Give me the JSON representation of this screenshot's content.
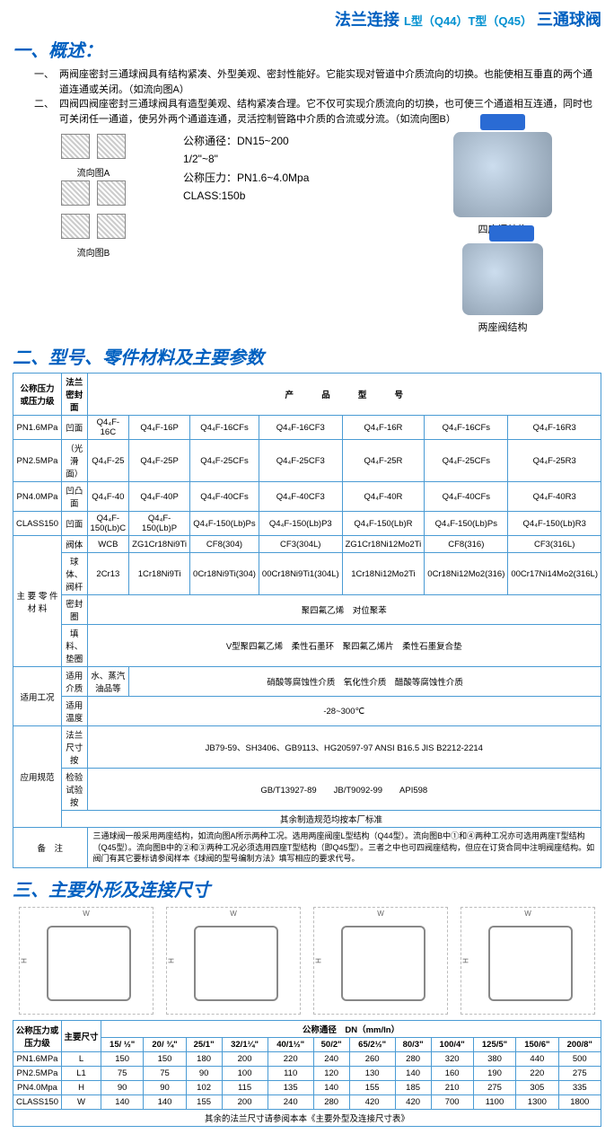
{
  "header": {
    "prefix": "法兰连接",
    "codes": "L型（Q44）T型（Q45）",
    "suffix": "三通球阀"
  },
  "sec1": {
    "title": "一、概述：",
    "items": [
      {
        "n": "一、",
        "t": "两阀座密封三通球阀具有结构紧凑、外型美观、密封性能好。它能实现对管道中介质流向的切换。也能使相互垂直的两个通道连通或关闭。（如流向图A）"
      },
      {
        "n": "二、",
        "t": "四阀四阀座密封三通球阀具有造型美观、结构紧凑合理。它不仅可实现介质流向的切换，也可使三个通道相互连通，同时也可关闭任一通道，使另外两个通道连通，灵活控制管路中介质的合流或分流。（如流向图B）"
      }
    ],
    "flowA": "流向图A",
    "flowB": "流向图B",
    "specs": [
      "公称通径：DN15~200",
      "1/2\"~8\"",
      "公称压力：PN1.6~4.0Mpa",
      "CLASS:150b"
    ],
    "cap4": "四座阀结构",
    "cap2": "两座阀结构"
  },
  "sec2": {
    "title": "二、型号、零件材料及主要参数",
    "hdr1": [
      "公称压力或压力级",
      "法兰密封面",
      "产",
      "品",
      "型",
      "号"
    ],
    "rows_model": [
      {
        "p": "PN1.6MPa",
        "f": "凹面",
        "c": [
          "Q4₄F-16C",
          "Q4₄F-16P",
          "Q4₄F-16CFs",
          "Q4₄F-16CF3",
          "Q4₄F-16R",
          "Q4₄F-16CFs",
          "Q4₄F-16R3"
        ]
      },
      {
        "p": "PN2.5MPa",
        "f": "（光滑面）",
        "c": [
          "Q4₄F-25",
          "Q4₄F-25P",
          "Q4₄F-25CFs",
          "Q4₄F-25CF3",
          "Q4₄F-25R",
          "Q4₄F-25CFs",
          "Q4₄F-25R3"
        ]
      },
      {
        "p": "PN4.0MPa",
        "f": "凹凸面",
        "c": [
          "Q4₄F-40",
          "Q4₄F-40P",
          "Q4₄F-40CFs",
          "Q4₄F-40CF3",
          "Q4₄F-40R",
          "Q4₄F-40CFs",
          "Q4₄F-40R3"
        ]
      },
      {
        "p": "CLASS150",
        "f": "凹面",
        "c": [
          "Q4₄F-150(Lb)C",
          "Q4₄F-150(Lb)P",
          "Q4₄F-150(Lb)Ps",
          "Q4₄F-150(Lb)P3",
          "Q4₄F-150(Lb)R",
          "Q4₄F-150(Lb)Ps",
          "Q4₄F-150(Lb)R3"
        ]
      }
    ],
    "parts_hdr": "主 要 零 件 材 料",
    "parts": [
      {
        "n": "阀体",
        "v": [
          "WCB",
          "ZG1Cr18Ni9Ti",
          "CF8(304)",
          "CF3(304L)",
          "ZG1Cr18Ni12Mo2Ti",
          "CF8(316)",
          "CF3(316L)"
        ]
      },
      {
        "n": "球体、阀杆",
        "v": [
          "2Cr13",
          "1Cr18Ni9Ti",
          "0Cr18Ni9Ti(304)",
          "00Cr18Ni9Ti1(304L)",
          "1Cr18Ni12Mo2Ti",
          "0Cr18Ni12Mo2(316)",
          "00Cr17Ni14Mo2(316L)"
        ]
      },
      {
        "n": "密封圈",
        "v": "聚四氟乙烯　对位聚苯"
      },
      {
        "n": "填料、垫圈",
        "v": "V型聚四氟乙烯　柔性石墨环　聚四氟乙烯片　柔性石墨复合垫"
      }
    ],
    "cond_hdr": "适用工况",
    "cond": [
      {
        "n": "适用介质",
        "l": "水、蒸汽油品等",
        "r": "硝酸等腐蚀性介质　氧化性介质　醋酸等腐蚀性介质"
      },
      {
        "n": "适用温度",
        "v": "-28~300℃"
      }
    ],
    "std_hdr": "应用规范",
    "std": [
      {
        "n": "法兰尺寸按",
        "v": "JB79-59、SH3406、GB9113、HG20597-97 ANSI B16.5 JIS B2212-2214"
      },
      {
        "n": "检验试验按",
        "v": "GB/T13927-89　　JB/T9092-99　　API598"
      },
      {
        "n": "",
        "v": "其余制造规范均按本厂标准"
      }
    ],
    "note_hdr": "备　注",
    "note": "三通球阀一般采用两座结构，如流向图A所示两种工况。选用两座阀座L型结构（Q44型）。流向图B中①和④两种工况亦可选用两座T型结构（Q45型）。流向图B中的②和③两种工况必须选用四座T型结构（即Q45型）。三者之中也可四阀座结构，但应在订货合同中注明阀座结构。如阀门有其它要标请参阅样本《球阀的型号编制方法》填写相应的要求代号。"
  },
  "sec3": {
    "title": "三、主要外形及连接尺寸",
    "hdr": [
      "公称压力或压力级",
      "主要尺寸",
      "公称通径　DN（mm/In）"
    ],
    "dn": [
      "15/ ½\"",
      "20/ ¾\"",
      "25/1\"",
      "32/1¼\"",
      "40/1½\"",
      "50/2\"",
      "65/2½\"",
      "80/3\"",
      "100/4\"",
      "125/5\"",
      "150/6\"",
      "200/8\""
    ],
    "rows": [
      {
        "p": "PN1.6MPa",
        "k": "L",
        "v": [
          "150",
          "150",
          "180",
          "200",
          "220",
          "240",
          "260",
          "280",
          "320",
          "380",
          "440",
          "500"
        ]
      },
      {
        "p": "PN2.5MPa",
        "k": "L1",
        "v": [
          "75",
          "75",
          "90",
          "100",
          "110",
          "120",
          "130",
          "140",
          "160",
          "190",
          "220",
          "275"
        ]
      },
      {
        "p": "PN4.0Mpa",
        "k": "H",
        "v": [
          "90",
          "90",
          "102",
          "115",
          "135",
          "140",
          "155",
          "185",
          "210",
          "275",
          "305",
          "335"
        ]
      },
      {
        "p": "CLASS150",
        "k": "W",
        "v": [
          "140",
          "140",
          "155",
          "200",
          "240",
          "280",
          "420",
          "420",
          "700",
          "1100",
          "1300",
          "1800"
        ]
      }
    ],
    "foot": "其余的法兰尺寸请参阅本本《主要外型及连接尺寸表》"
  }
}
